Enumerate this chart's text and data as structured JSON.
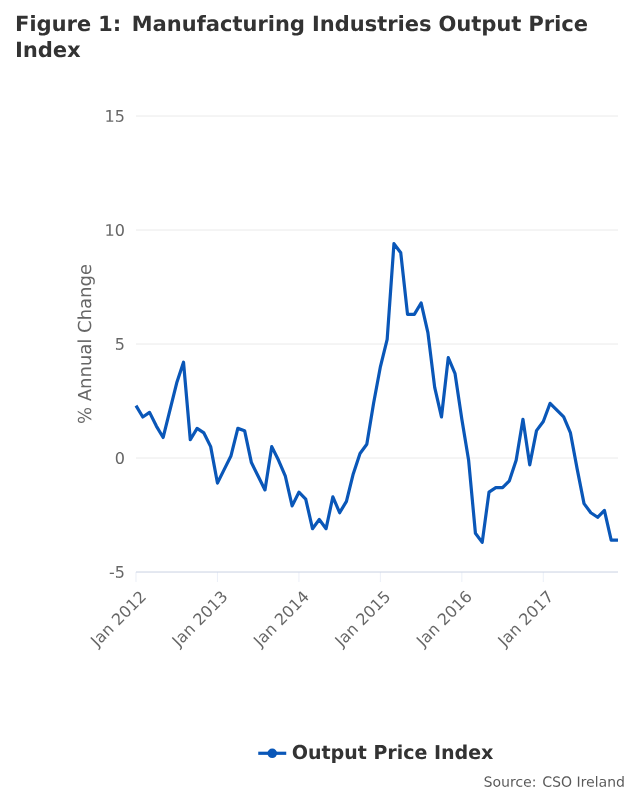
{
  "chart_data": {
    "type": "line",
    "title": "Figure 1: Manufacturing Industries Output Price Index",
    "ylabel": "% Annual Change",
    "x": [
      "2012-01",
      "2012-02",
      "2012-03",
      "2012-04",
      "2012-05",
      "2012-06",
      "2012-07",
      "2012-08",
      "2012-09",
      "2012-10",
      "2012-11",
      "2012-12",
      "2013-01",
      "2013-02",
      "2013-03",
      "2013-04",
      "2013-05",
      "2013-06",
      "2013-07",
      "2013-08",
      "2013-09",
      "2013-10",
      "2013-11",
      "2013-12",
      "2014-01",
      "2014-02",
      "2014-03",
      "2014-04",
      "2014-05",
      "2014-06",
      "2014-07",
      "2014-08",
      "2014-09",
      "2014-10",
      "2014-11",
      "2014-12",
      "2015-01",
      "2015-02",
      "2015-03",
      "2015-04",
      "2015-05",
      "2015-06",
      "2015-07",
      "2015-08",
      "2015-09",
      "2015-10",
      "2015-11",
      "2015-12",
      "2016-01",
      "2016-02",
      "2016-03",
      "2016-04",
      "2016-05",
      "2016-06",
      "2016-07",
      "2016-08",
      "2016-09",
      "2016-10",
      "2016-11",
      "2016-12",
      "2017-01",
      "2017-02",
      "2017-03",
      "2017-04",
      "2017-05",
      "2017-06",
      "2017-07",
      "2017-08",
      "2017-09",
      "2017-10",
      "2017-11",
      "2017-12"
    ],
    "series": [
      {
        "name": "Output Price Index",
        "color": "#0a57b8",
        "values": [
          2.3,
          1.8,
          2.0,
          1.4,
          0.9,
          2.1,
          3.3,
          4.2,
          0.8,
          1.3,
          1.1,
          0.5,
          -1.1,
          -0.5,
          0.1,
          1.3,
          1.2,
          -0.2,
          -0.8,
          -1.4,
          0.5,
          -0.1,
          -0.8,
          -2.1,
          -1.5,
          -1.8,
          -3.1,
          -2.7,
          -3.1,
          -1.7,
          -2.4,
          -1.9,
          -0.7,
          0.2,
          0.6,
          2.4,
          4.0,
          5.2,
          9.4,
          9.0,
          6.3,
          6.3,
          6.8,
          5.5,
          3.1,
          1.8,
          4.4,
          3.7,
          1.7,
          -0.1,
          -3.3,
          -3.7,
          -1.5,
          -1.3,
          -1.3,
          -1.0,
          -0.1,
          1.7,
          -0.3,
          1.2,
          1.6,
          2.4,
          2.1,
          1.8,
          1.1,
          -0.5,
          -2.0,
          -2.4,
          -2.6,
          -2.3,
          -3.6,
          -3.6
        ]
      }
    ],
    "xlim": [
      "2012-01",
      "2017-12"
    ],
    "xticks": [
      {
        "value": "2012-01",
        "label": "Jan 2012"
      },
      {
        "value": "2013-01",
        "label": "Jan 2013"
      },
      {
        "value": "2014-01",
        "label": "Jan 2014"
      },
      {
        "value": "2015-01",
        "label": "Jan 2015"
      },
      {
        "value": "2016-01",
        "label": "Jan 2016"
      },
      {
        "value": "2017-01",
        "label": "Jan 2017"
      }
    ],
    "ylim": [
      -5,
      15
    ],
    "yticks": [
      -5,
      0,
      5,
      10,
      15
    ],
    "grid": "y",
    "legend": "bottom",
    "annotations": [
      "Source: CSO Ireland"
    ]
  }
}
